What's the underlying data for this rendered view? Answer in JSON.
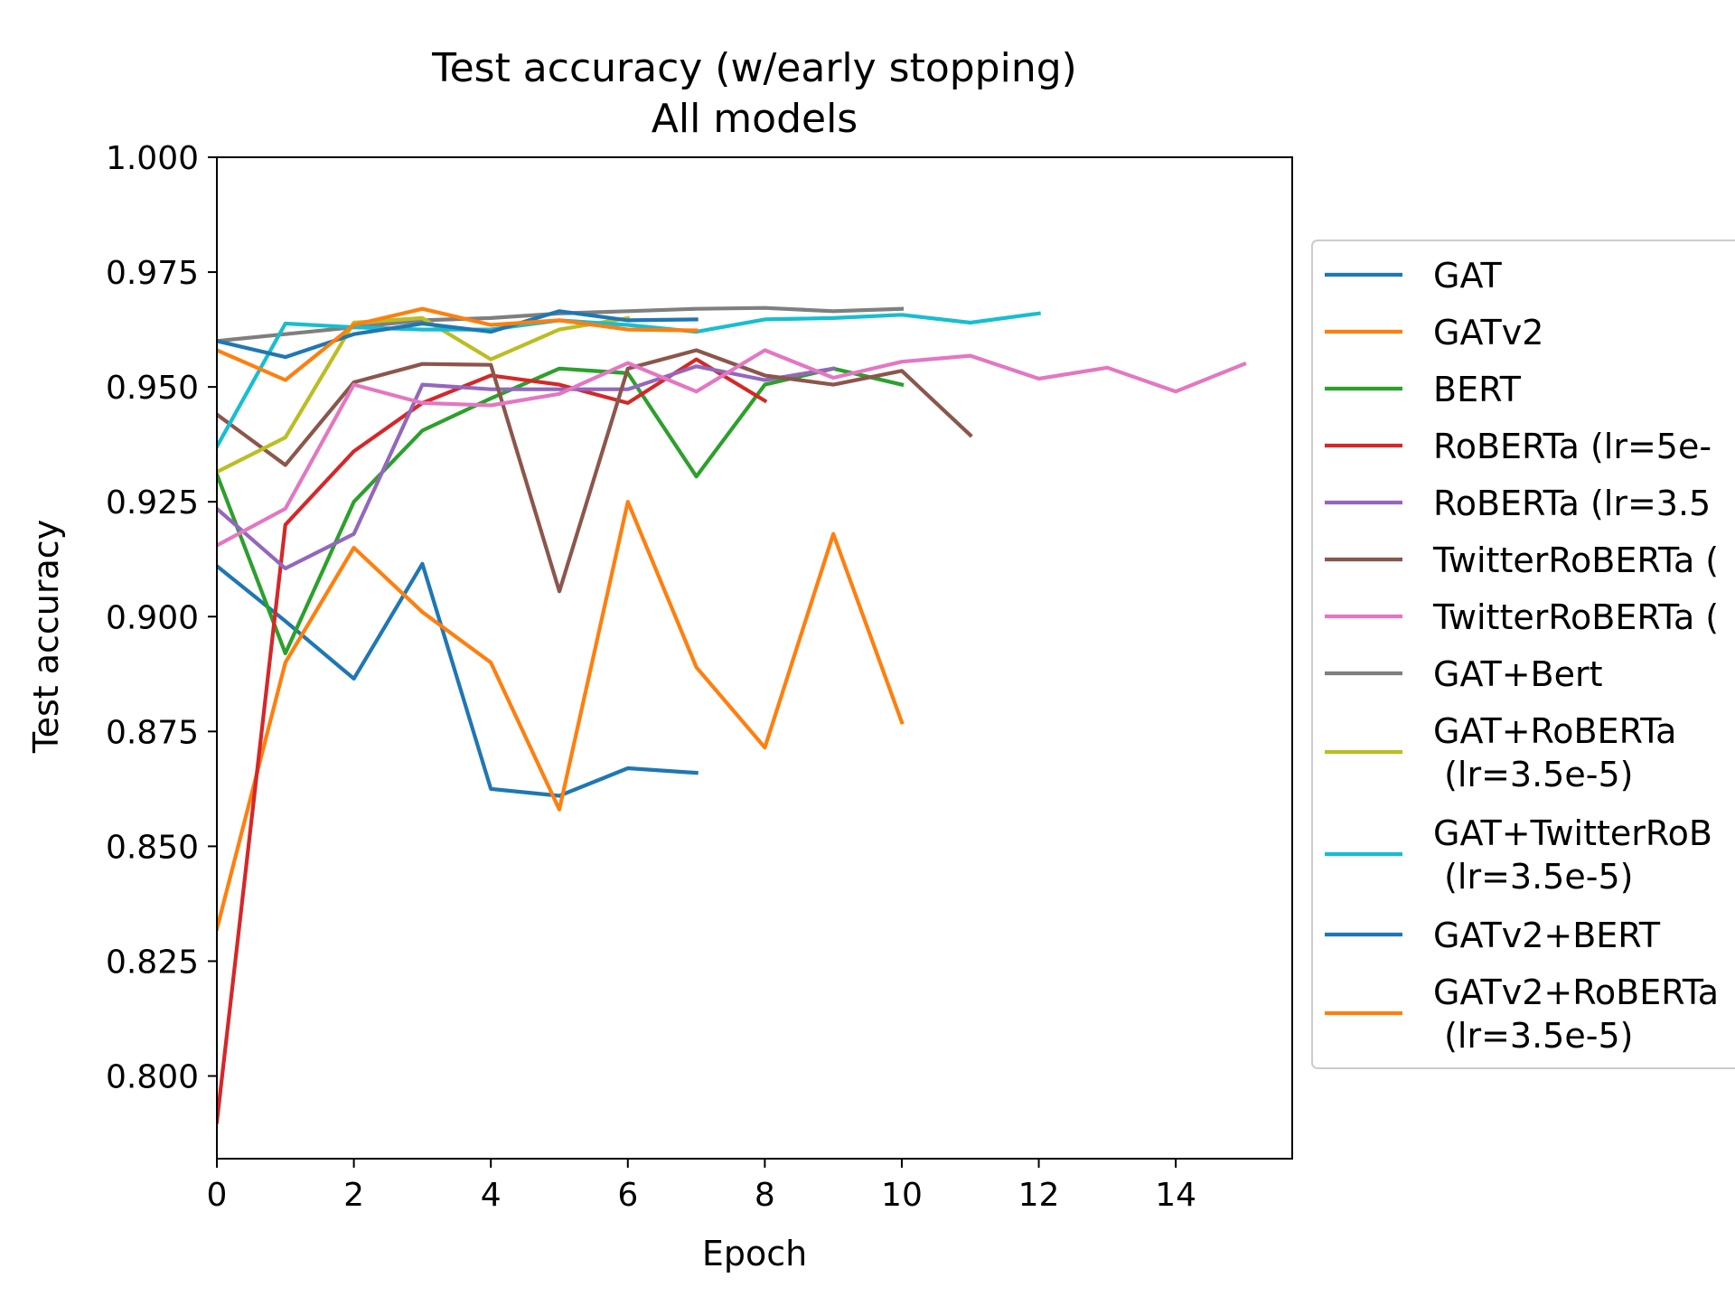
{
  "chart_data": {
    "type": "line",
    "title": "Test accuracy (w/early stopping)",
    "subtitle": "All models",
    "xlabel": "Epoch",
    "ylabel": "Test accuracy",
    "xlim": [
      0,
      15.7
    ],
    "ylim": [
      0.782,
      1.0
    ],
    "xticks": [
      "0",
      "2",
      "4",
      "6",
      "8",
      "10",
      "12",
      "14"
    ],
    "yticks": [
      "0.800",
      "0.825",
      "0.850",
      "0.875",
      "0.900",
      "0.925",
      "0.950",
      "0.975",
      "1.000"
    ],
    "grid": false,
    "legend_position": "right outside (cut off)",
    "series": [
      {
        "name": "GAT",
        "legend_lines": [
          "GAT"
        ],
        "color": "#1f77b4",
        "x": [
          0,
          1,
          2,
          3,
          4,
          5,
          6,
          7
        ],
        "y": [
          0.911,
          0.899,
          0.8865,
          0.9115,
          0.8625,
          0.861,
          0.867,
          0.866
        ]
      },
      {
        "name": "GATv2",
        "legend_lines": [
          "GATv2"
        ],
        "color": "#ff7f0e",
        "x": [
          0,
          1,
          2,
          3,
          4,
          5,
          6,
          7,
          8,
          9,
          10
        ],
        "y": [
          0.832,
          0.89,
          0.915,
          0.901,
          0.89,
          0.858,
          0.925,
          0.889,
          0.8715,
          0.918,
          0.877
        ]
      },
      {
        "name": "BERT",
        "legend_lines": [
          "BERT"
        ],
        "color": "#2ca02c",
        "x": [
          0,
          1,
          2,
          3,
          4,
          5,
          6,
          7,
          8,
          9,
          10
        ],
        "y": [
          0.931,
          0.892,
          0.925,
          0.9405,
          0.9475,
          0.954,
          0.953,
          0.9305,
          0.9505,
          0.954,
          0.9505
        ]
      },
      {
        "name": "RoBERTa (lr=5e-",
        "legend_lines": [
          "RoBERTa (lr=5e-"
        ],
        "color": "#d62728",
        "x": [
          0,
          1,
          2,
          3,
          4,
          5,
          6,
          7,
          8
        ],
        "y": [
          0.79,
          0.92,
          0.936,
          0.9465,
          0.9525,
          0.9505,
          0.9465,
          0.956,
          0.947
        ]
      },
      {
        "name": "RoBERTa (lr=3.5",
        "legend_lines": [
          "RoBERTa (lr=3.5"
        ],
        "color": "#9467bd",
        "x": [
          0,
          1,
          2,
          3,
          4,
          5,
          6,
          7,
          8,
          9
        ],
        "y": [
          0.9235,
          0.9105,
          0.918,
          0.9505,
          0.9495,
          0.9495,
          0.9495,
          0.9545,
          0.9515,
          0.954
        ]
      },
      {
        "name": "TwitterRoBERTa (",
        "legend_lines": [
          "TwitterRoBERTa ("
        ],
        "color": "#8c564b",
        "x": [
          0,
          1,
          2,
          3,
          4,
          5,
          6,
          7,
          8,
          9,
          10,
          11
        ],
        "y": [
          0.944,
          0.933,
          0.951,
          0.955,
          0.9548,
          0.9055,
          0.954,
          0.958,
          0.9525,
          0.9505,
          0.9535,
          0.9395
        ]
      },
      {
        "name": "TwitterRoBERTa (",
        "legend_lines": [
          "TwitterRoBERTa ("
        ],
        "color": "#e377c2",
        "x": [
          0,
          1,
          2,
          3,
          4,
          5,
          6,
          7,
          8,
          9,
          10,
          11,
          12,
          13,
          14,
          15
        ],
        "y": [
          0.9155,
          0.9235,
          0.9505,
          0.9465,
          0.946,
          0.9485,
          0.9552,
          0.949,
          0.958,
          0.952,
          0.9555,
          0.9568,
          0.9518,
          0.9542,
          0.949,
          0.955
        ]
      },
      {
        "name": "GAT+Bert",
        "legend_lines": [
          "GAT+Bert"
        ],
        "color": "#7f7f7f",
        "x": [
          0,
          1,
          2,
          3,
          4,
          5,
          6,
          7,
          8,
          9,
          10
        ],
        "y": [
          0.96,
          0.9615,
          0.963,
          0.9645,
          0.965,
          0.966,
          0.9665,
          0.967,
          0.9672,
          0.9665,
          0.967
        ]
      },
      {
        "name": "GAT+RoBERTa (lr=3.5e-5)",
        "legend_lines": [
          "GAT+RoBERTa",
          " (lr=3.5e-5)"
        ],
        "color": "#bcbd22",
        "x": [
          0,
          1,
          2,
          3,
          4,
          5,
          6
        ],
        "y": [
          0.9315,
          0.939,
          0.964,
          0.965,
          0.956,
          0.9625,
          0.965
        ]
      },
      {
        "name": "GAT+TwitterRoB (lr=3.5e-5)",
        "legend_lines": [
          "GAT+TwitterRoB",
          " (lr=3.5e-5)"
        ],
        "color": "#17becf",
        "x": [
          0,
          1,
          2,
          3,
          4,
          5,
          6,
          7,
          8,
          9,
          10,
          11,
          12
        ],
        "y": [
          0.937,
          0.9638,
          0.963,
          0.9625,
          0.9625,
          0.9645,
          0.9635,
          0.962,
          0.9647,
          0.965,
          0.9657,
          0.964,
          0.966
        ]
      },
      {
        "name": "GATv2+BERT",
        "legend_lines": [
          "GATv2+BERT"
        ],
        "color": "#1f77b4",
        "x": [
          0,
          1,
          2,
          3,
          4,
          5,
          6,
          7
        ],
        "y": [
          0.96,
          0.9565,
          0.9615,
          0.9638,
          0.962,
          0.9665,
          0.9645,
          0.9647
        ]
      },
      {
        "name": "GATv2+RoBERTa (lr=3.5e-5)",
        "legend_lines": [
          "GATv2+RoBERTa",
          " (lr=3.5e-5)"
        ],
        "color": "#ff7f0e",
        "x": [
          0,
          1,
          2,
          3,
          4,
          5,
          6,
          7
        ],
        "y": [
          0.958,
          0.9515,
          0.9635,
          0.967,
          0.9635,
          0.9645,
          0.9625,
          0.9623
        ]
      }
    ]
  }
}
